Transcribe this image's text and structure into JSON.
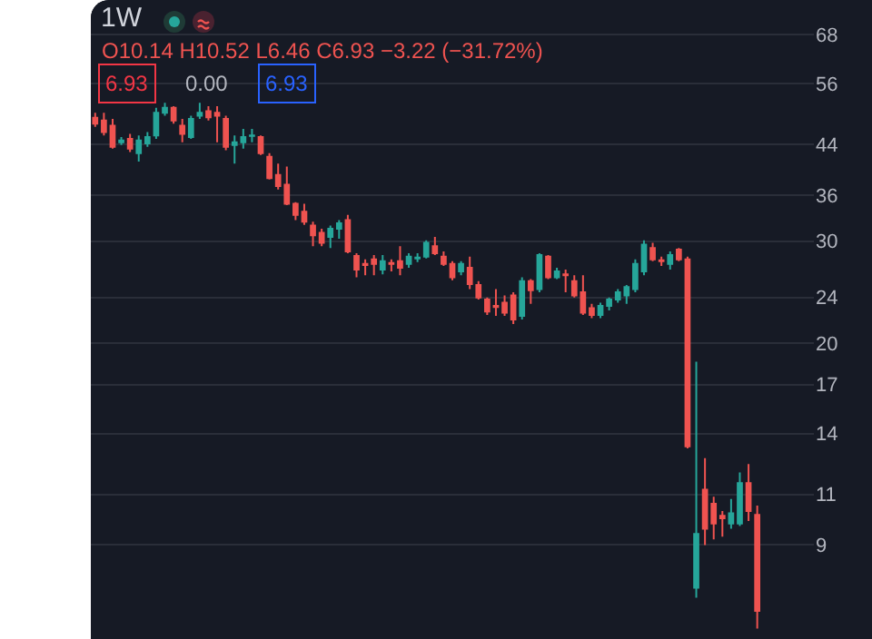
{
  "chart_data": {
    "type": "candlestick",
    "title": "1W",
    "subtitle": "O10.14 H10.52 L6.46 C6.93 −3.22 (−31.72%)",
    "annotations": [
      "6.93",
      "0.00",
      "6.93"
    ],
    "categories": [
      null,
      null,
      null,
      null,
      null,
      null,
      null,
      null,
      null,
      null,
      null,
      null,
      null,
      null,
      null,
      null,
      null,
      null,
      null,
      null,
      null,
      null,
      null,
      null,
      null,
      null,
      null,
      null,
      null,
      null,
      null,
      null,
      null,
      null,
      null,
      null,
      null,
      null,
      null,
      null,
      null,
      null,
      null,
      null,
      null,
      null,
      null,
      null,
      null,
      null,
      null,
      null,
      null,
      null,
      null,
      null,
      null,
      null,
      null,
      null,
      null,
      null,
      null,
      null,
      null,
      null,
      null,
      null,
      null,
      null,
      null,
      null,
      null,
      null,
      null,
      null,
      null
    ],
    "ohlc": [
      [
        48.9,
        49.9,
        47.2,
        47.8
      ],
      [
        48.4,
        49.9,
        45.6,
        46.2
      ],
      [
        47.4,
        48.7,
        43.3,
        43.6
      ],
      [
        44.4,
        45.3,
        43.9,
        44.7
      ],
      [
        45.0,
        45.9,
        42.7,
        43.3
      ],
      [
        42.5,
        45.6,
        41.1,
        44.7
      ],
      [
        44.2,
        46.2,
        43.6,
        45.3
      ],
      [
        45.6,
        50.9,
        45.0,
        49.9
      ],
      [
        49.9,
        51.9,
        49.3,
        50.9
      ],
      [
        50.9,
        51.2,
        47.8,
        48.4
      ],
      [
        47.4,
        48.7,
        44.4,
        45.9
      ],
      [
        45.3,
        49.3,
        45.0,
        48.7
      ],
      [
        49.3,
        51.9,
        48.7,
        49.9
      ],
      [
        50.2,
        51.2,
        48.4,
        49.0
      ],
      [
        49.9,
        51.2,
        44.4,
        49.3
      ],
      [
        48.7,
        49.3,
        43.0,
        43.6
      ],
      [
        43.9,
        45.6,
        40.8,
        44.4
      ],
      [
        44.4,
        46.8,
        43.3,
        45.3
      ],
      [
        45.5,
        46.8,
        44.4,
        45.6
      ],
      [
        45.3,
        45.6,
        42.2,
        42.5
      ],
      [
        41.9,
        42.5,
        38.3,
        38.5
      ],
      [
        39.0,
        40.8,
        36.8,
        37.3
      ],
      [
        37.5,
        40.3,
        34.6,
        34.8
      ],
      [
        34.8,
        35.0,
        32.6,
        33.3
      ],
      [
        33.7,
        34.8,
        32.0,
        32.4
      ],
      [
        31.9,
        32.4,
        29.4,
        30.7
      ],
      [
        31.0,
        31.5,
        29.4,
        29.8
      ],
      [
        30.5,
        31.9,
        29.2,
        31.5
      ],
      [
        31.5,
        32.6,
        30.3,
        32.2
      ],
      [
        32.6,
        33.3,
        28.6,
        28.8
      ],
      [
        28.3,
        28.6,
        26.0,
        26.8
      ],
      [
        27.4,
        27.9,
        26.2,
        27.3
      ],
      [
        27.9,
        28.4,
        26.2,
        27.4
      ],
      [
        26.8,
        28.4,
        26.3,
        27.7
      ],
      [
        27.5,
        27.9,
        26.6,
        27.4
      ],
      [
        27.7,
        29.4,
        26.2,
        27.0
      ],
      [
        27.4,
        28.6,
        27.0,
        28.2
      ],
      [
        28.0,
        28.6,
        27.6,
        28.1
      ],
      [
        28.2,
        30.1,
        28.0,
        29.8
      ],
      [
        29.4,
        30.5,
        28.4,
        28.6
      ],
      [
        28.2,
        28.8,
        27.2,
        27.4
      ],
      [
        27.4,
        27.7,
        25.7,
        26.0
      ],
      [
        26.6,
        27.7,
        26.2,
        27.4
      ],
      [
        27.0,
        28.2,
        24.8,
        25.3
      ],
      [
        25.2,
        25.6,
        23.8,
        24.0
      ],
      [
        23.8,
        24.0,
        22.4,
        22.7
      ],
      [
        23.2,
        24.8,
        22.3,
        23.1
      ],
      [
        23.5,
        24.2,
        22.3,
        22.6
      ],
      [
        24.2,
        24.5,
        21.6,
        22.0
      ],
      [
        22.3,
        26.0,
        22.0,
        25.6
      ],
      [
        25.6,
        25.8,
        23.4,
        24.7
      ],
      [
        24.8,
        28.6,
        24.5,
        28.4
      ],
      [
        28.2,
        28.4,
        25.8,
        26.0
      ],
      [
        26.0,
        27.0,
        25.8,
        26.6
      ],
      [
        26.3,
        26.8,
        24.5,
        26.2
      ],
      [
        25.6,
        26.2,
        24.0,
        24.2
      ],
      [
        24.5,
        26.2,
        22.4,
        22.6
      ],
      [
        23.0,
        23.4,
        22.1,
        22.4
      ],
      [
        22.4,
        23.5,
        22.1,
        23.2
      ],
      [
        23.2,
        24.0,
        22.8,
        23.8
      ],
      [
        23.8,
        24.8,
        23.5,
        24.5
      ],
      [
        24.2,
        25.2,
        23.4,
        25.0
      ],
      [
        24.8,
        27.9,
        24.5,
        27.4
      ],
      [
        26.6,
        30.1,
        26.2,
        29.6
      ],
      [
        29.2,
        29.8,
        27.7,
        27.9
      ],
      [
        27.8,
        28.2,
        27.2,
        27.7
      ],
      [
        27.4,
        28.8,
        26.8,
        28.4
      ],
      [
        29.0,
        29.2,
        27.7,
        27.9
      ],
      [
        27.9,
        28.2,
        13.2,
        13.3
      ],
      [
        7.6,
        18.6,
        7.3,
        9.4
      ],
      [
        11.2,
        12.7,
        9.0,
        9.6
      ],
      [
        10.6,
        10.9,
        9.2,
        9.8
      ],
      [
        10.1,
        10.3,
        9.3,
        10.0
      ],
      [
        9.8,
        10.8,
        9.6,
        10.2
      ],
      [
        9.8,
        12.0,
        9.7,
        11.5
      ],
      [
        11.5,
        12.4,
        9.9,
        10.3
      ],
      [
        10.14,
        10.52,
        6.46,
        6.93
      ]
    ],
    "colors": [
      "#ef5350",
      "#ef5350",
      "#ef5350",
      "#26a69a",
      "#ef5350",
      "#26a69a",
      "#26a69a",
      "#26a69a",
      "#26a69a",
      "#ef5350",
      "#ef5350",
      "#26a69a",
      "#26a69a",
      "#ef5350",
      "#ef5350",
      "#ef5350",
      "#26a69a",
      "#26a69a",
      "#26a69a",
      "#ef5350",
      "#ef5350",
      "#ef5350",
      "#ef5350",
      "#ef5350",
      "#ef5350",
      "#ef5350",
      "#ef5350",
      "#26a69a",
      "#26a69a",
      "#ef5350",
      "#ef5350",
      "#ef5350",
      "#ef5350",
      "#26a69a",
      "#ef5350",
      "#ef5350",
      "#26a69a",
      "#26a69a",
      "#26a69a",
      "#ef5350",
      "#ef5350",
      "#ef5350",
      "#26a69a",
      "#ef5350",
      "#ef5350",
      "#ef5350",
      "#ef5350",
      "#ef5350",
      "#ef5350",
      "#26a69a",
      "#ef5350",
      "#26a69a",
      "#ef5350",
      "#26a69a",
      "#ef5350",
      "#ef5350",
      "#ef5350",
      "#ef5350",
      "#26a69a",
      "#26a69a",
      "#26a69a",
      "#26a69a",
      "#26a69a",
      "#26a69a",
      "#ef5350",
      "#ef5350",
      "#26a69a",
      "#ef5350",
      "#ef5350",
      "#26a69a",
      "#ef5350",
      "#ef5350",
      "#ef5350",
      "#26a69a",
      "#26a69a",
      "#ef5350",
      "#ef5350"
    ],
    "log": true,
    "ylim": [
      6.2,
      78
    ],
    "yticks": [
      68,
      56,
      44,
      36,
      30,
      24,
      20,
      17,
      14,
      11,
      9
    ],
    "grid": "y"
  }
}
